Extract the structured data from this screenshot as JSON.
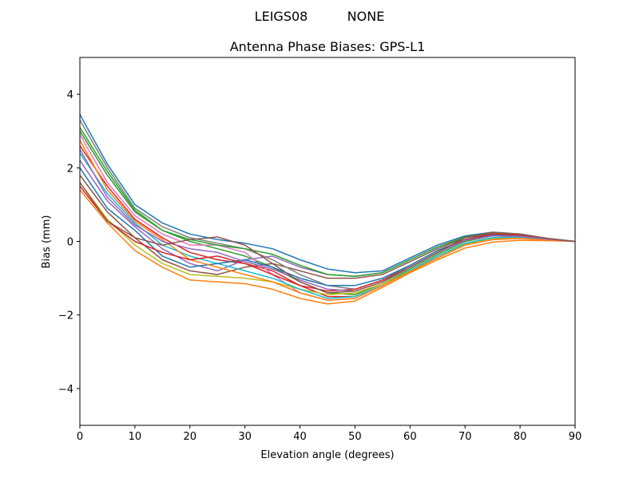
{
  "suptitle": {
    "antenna": "LEIGS08",
    "radome": "NONE"
  },
  "chart_data": {
    "type": "line",
    "title": "Antenna Phase Biases: GPS-L1",
    "xlabel": "Elevation angle (degrees)",
    "ylabel": "Bias (mm)",
    "xlim": [
      0,
      90
    ],
    "ylim": [
      -5,
      5
    ],
    "xticks": [
      0,
      10,
      20,
      30,
      40,
      50,
      60,
      70,
      80,
      90
    ],
    "yticks": [
      -4,
      -2,
      0,
      2,
      4
    ],
    "ytick_labels": [
      "−4",
      "−2",
      "0",
      "2",
      "4"
    ],
    "grid": false,
    "legend": "none",
    "colors": [
      "#1f77b4",
      "#ff7f0e",
      "#2ca02c",
      "#d62728",
      "#9467bd",
      "#8c564b",
      "#e377c2",
      "#7f7f7f",
      "#bcbd22",
      "#17becf"
    ],
    "x": [
      0,
      5,
      10,
      15,
      20,
      25,
      30,
      35,
      40,
      45,
      50,
      55,
      60,
      65,
      70,
      75,
      80,
      85,
      90
    ],
    "series": [
      {
        "values": [
          3.45,
          2.1,
          1.0,
          0.5,
          0.2,
          0.05,
          -0.05,
          -0.2,
          -0.5,
          -0.75,
          -0.85,
          -0.8,
          -0.45,
          -0.1,
          0.15,
          0.25,
          0.2,
          0.08,
          0
        ]
      },
      {
        "values": [
          1.4,
          0.5,
          -0.25,
          -0.7,
          -1.05,
          -1.1,
          -1.15,
          -1.3,
          -1.55,
          -1.7,
          -1.62,
          -1.25,
          -0.85,
          -0.5,
          -0.18,
          -0.02,
          0.03,
          0.02,
          0
        ]
      },
      {
        "values": [
          3.0,
          1.8,
          0.8,
          0.3,
          0.0,
          -0.2,
          -0.4,
          -0.7,
          -1.1,
          -1.4,
          -1.45,
          -1.15,
          -0.75,
          -0.35,
          0.0,
          0.15,
          0.15,
          0.06,
          0
        ]
      },
      {
        "values": [
          2.6,
          1.5,
          0.6,
          0.1,
          -0.3,
          -0.5,
          -0.6,
          -0.8,
          -1.2,
          -1.5,
          -1.5,
          -1.2,
          -0.8,
          -0.4,
          -0.05,
          0.1,
          0.12,
          0.05,
          0
        ]
      },
      {
        "values": [
          2.2,
          1.1,
          0.4,
          -0.2,
          -0.6,
          -0.8,
          -0.5,
          -0.4,
          -0.7,
          -0.9,
          -0.95,
          -0.85,
          -0.5,
          -0.15,
          0.12,
          0.22,
          0.18,
          0.07,
          0
        ]
      },
      {
        "values": [
          1.8,
          0.8,
          0.1,
          -0.5,
          -0.8,
          -0.9,
          -0.7,
          -0.6,
          -0.8,
          -1.0,
          -1.0,
          -0.9,
          -0.55,
          -0.2,
          0.1,
          0.2,
          0.17,
          0.07,
          0
        ]
      },
      {
        "values": [
          2.9,
          1.6,
          0.7,
          0.2,
          -0.1,
          -0.1,
          -0.3,
          -0.9,
          -1.4,
          -1.6,
          -1.55,
          -1.2,
          -0.8,
          -0.45,
          -0.1,
          0.05,
          0.08,
          0.04,
          0
        ]
      },
      {
        "values": [
          3.3,
          2.0,
          0.9,
          0.4,
          0.1,
          -0.05,
          -0.2,
          -0.5,
          -0.9,
          -1.2,
          -1.3,
          -1.05,
          -0.65,
          -0.25,
          0.05,
          0.2,
          0.18,
          0.07,
          0
        ]
      },
      {
        "values": [
          1.6,
          0.6,
          -0.1,
          -0.6,
          -0.9,
          -0.95,
          -1.0,
          -1.1,
          -1.3,
          -1.45,
          -1.4,
          -1.15,
          -0.8,
          -0.4,
          -0.08,
          0.08,
          0.1,
          0.05,
          0
        ]
      },
      {
        "values": [
          2.4,
          1.3,
          0.5,
          -0.1,
          -0.4,
          -0.6,
          -0.8,
          -1.0,
          -1.3,
          -1.55,
          -1.5,
          -1.2,
          -0.8,
          -0.4,
          -0.05,
          0.1,
          0.12,
          0.05,
          0
        ]
      },
      {
        "values": [
          2.0,
          0.9,
          0.3,
          -0.4,
          -0.7,
          -0.6,
          -0.5,
          -0.7,
          -1.0,
          -1.2,
          -1.2,
          -1.0,
          -0.65,
          -0.25,
          0.05,
          0.18,
          0.15,
          0.06,
          0
        ]
      },
      {
        "values": [
          2.75,
          1.4,
          0.55,
          0.05,
          -0.5,
          -0.7,
          -0.9,
          -1.1,
          -1.4,
          -1.6,
          -1.55,
          -1.2,
          -0.82,
          -0.45,
          -0.1,
          0.05,
          0.08,
          0.04,
          0
        ]
      },
      {
        "values": [
          3.1,
          1.9,
          0.85,
          0.3,
          0.05,
          -0.1,
          -0.2,
          -0.35,
          -0.65,
          -0.9,
          -0.95,
          -0.85,
          -0.5,
          -0.15,
          0.12,
          0.24,
          0.19,
          0.07,
          0
        ]
      },
      {
        "values": [
          1.5,
          0.55,
          0.0,
          -0.3,
          -0.5,
          -0.4,
          -0.6,
          -0.9,
          -1.2,
          -1.35,
          -1.3,
          -1.05,
          -0.7,
          -0.3,
          0.05,
          0.2,
          0.17,
          0.07,
          0
        ]
      },
      {
        "values": [
          2.5,
          1.2,
          0.45,
          0.0,
          -0.2,
          -0.3,
          -0.55,
          -0.75,
          -1.05,
          -1.3,
          -1.35,
          -1.1,
          -0.7,
          -0.3,
          0.03,
          0.15,
          0.14,
          0.06,
          0
        ]
      },
      {
        "values": [
          1.6,
          0.55,
          0.1,
          -0.1,
          0.05,
          0.12,
          -0.1,
          -0.6,
          -1.1,
          -1.4,
          -1.35,
          -1.1,
          -0.7,
          -0.3,
          0.1,
          0.25,
          0.2,
          0.08,
          0
        ]
      }
    ]
  }
}
